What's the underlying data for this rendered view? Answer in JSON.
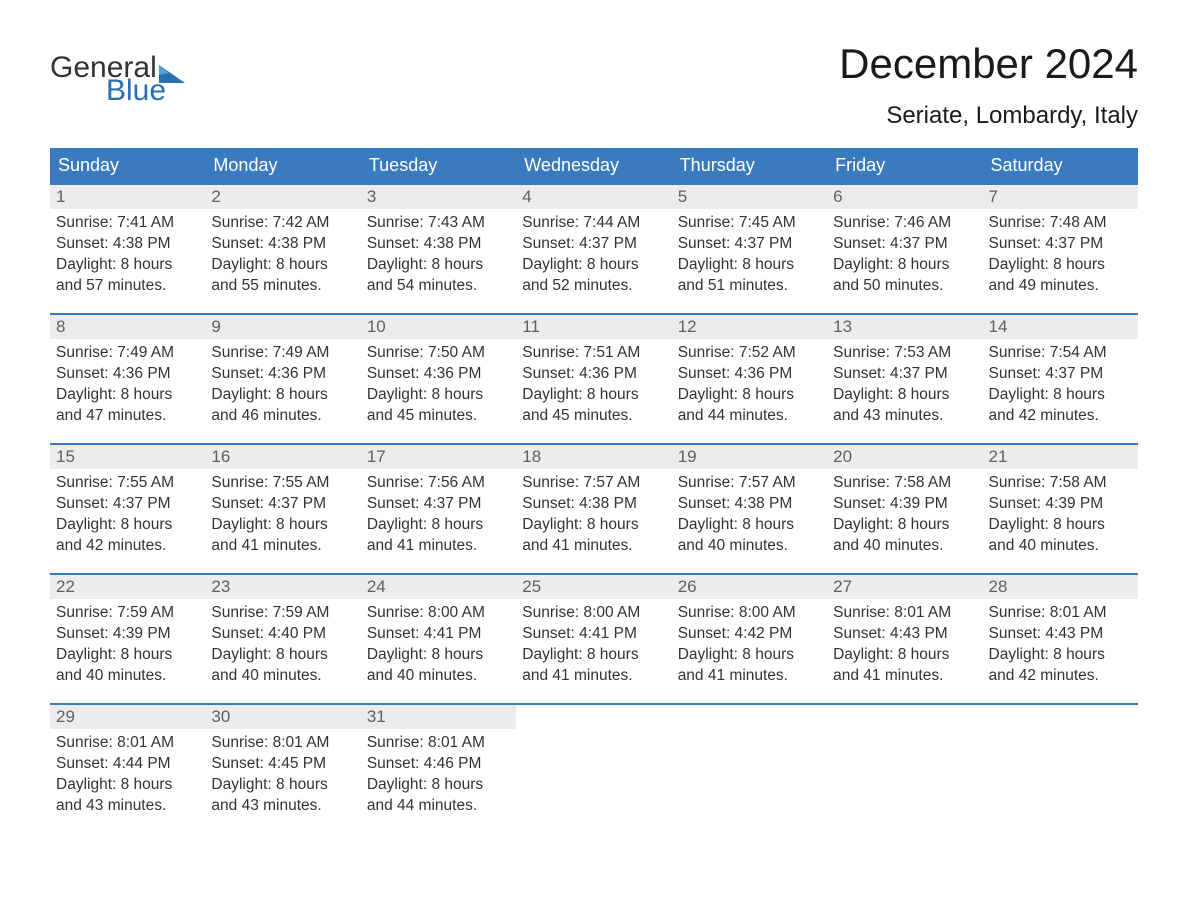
{
  "logo": {
    "word1": "General",
    "word2": "Blue",
    "icon_color": "#2a6fb5",
    "text_color": "#2a6fb5"
  },
  "title": "December 2024",
  "location": "Seriate, Lombardy, Italy",
  "colors": {
    "header_bg": "#3a7bbf",
    "header_text": "#ffffff",
    "week_border": "#3a7bbf",
    "daynum_bg": "#ececec",
    "daynum_text": "#606060",
    "body_text": "#333333",
    "background": "#ffffff"
  },
  "typography": {
    "title_fontsize": 42,
    "location_fontsize": 24,
    "dow_fontsize": 18,
    "daynum_fontsize": 17,
    "body_fontsize": 15.5,
    "font_family": "Arial"
  },
  "days_of_week": [
    "Sunday",
    "Monday",
    "Tuesday",
    "Wednesday",
    "Thursday",
    "Friday",
    "Saturday"
  ],
  "weeks": [
    [
      {
        "num": "1",
        "sunrise": "Sunrise: 7:41 AM",
        "sunset": "Sunset: 4:38 PM",
        "daylight1": "Daylight: 8 hours",
        "daylight2": "and 57 minutes."
      },
      {
        "num": "2",
        "sunrise": "Sunrise: 7:42 AM",
        "sunset": "Sunset: 4:38 PM",
        "daylight1": "Daylight: 8 hours",
        "daylight2": "and 55 minutes."
      },
      {
        "num": "3",
        "sunrise": "Sunrise: 7:43 AM",
        "sunset": "Sunset: 4:38 PM",
        "daylight1": "Daylight: 8 hours",
        "daylight2": "and 54 minutes."
      },
      {
        "num": "4",
        "sunrise": "Sunrise: 7:44 AM",
        "sunset": "Sunset: 4:37 PM",
        "daylight1": "Daylight: 8 hours",
        "daylight2": "and 52 minutes."
      },
      {
        "num": "5",
        "sunrise": "Sunrise: 7:45 AM",
        "sunset": "Sunset: 4:37 PM",
        "daylight1": "Daylight: 8 hours",
        "daylight2": "and 51 minutes."
      },
      {
        "num": "6",
        "sunrise": "Sunrise: 7:46 AM",
        "sunset": "Sunset: 4:37 PM",
        "daylight1": "Daylight: 8 hours",
        "daylight2": "and 50 minutes."
      },
      {
        "num": "7",
        "sunrise": "Sunrise: 7:48 AM",
        "sunset": "Sunset: 4:37 PM",
        "daylight1": "Daylight: 8 hours",
        "daylight2": "and 49 minutes."
      }
    ],
    [
      {
        "num": "8",
        "sunrise": "Sunrise: 7:49 AM",
        "sunset": "Sunset: 4:36 PM",
        "daylight1": "Daylight: 8 hours",
        "daylight2": "and 47 minutes."
      },
      {
        "num": "9",
        "sunrise": "Sunrise: 7:49 AM",
        "sunset": "Sunset: 4:36 PM",
        "daylight1": "Daylight: 8 hours",
        "daylight2": "and 46 minutes."
      },
      {
        "num": "10",
        "sunrise": "Sunrise: 7:50 AM",
        "sunset": "Sunset: 4:36 PM",
        "daylight1": "Daylight: 8 hours",
        "daylight2": "and 45 minutes."
      },
      {
        "num": "11",
        "sunrise": "Sunrise: 7:51 AM",
        "sunset": "Sunset: 4:36 PM",
        "daylight1": "Daylight: 8 hours",
        "daylight2": "and 45 minutes."
      },
      {
        "num": "12",
        "sunrise": "Sunrise: 7:52 AM",
        "sunset": "Sunset: 4:36 PM",
        "daylight1": "Daylight: 8 hours",
        "daylight2": "and 44 minutes."
      },
      {
        "num": "13",
        "sunrise": "Sunrise: 7:53 AM",
        "sunset": "Sunset: 4:37 PM",
        "daylight1": "Daylight: 8 hours",
        "daylight2": "and 43 minutes."
      },
      {
        "num": "14",
        "sunrise": "Sunrise: 7:54 AM",
        "sunset": "Sunset: 4:37 PM",
        "daylight1": "Daylight: 8 hours",
        "daylight2": "and 42 minutes."
      }
    ],
    [
      {
        "num": "15",
        "sunrise": "Sunrise: 7:55 AM",
        "sunset": "Sunset: 4:37 PM",
        "daylight1": "Daylight: 8 hours",
        "daylight2": "and 42 minutes."
      },
      {
        "num": "16",
        "sunrise": "Sunrise: 7:55 AM",
        "sunset": "Sunset: 4:37 PM",
        "daylight1": "Daylight: 8 hours",
        "daylight2": "and 41 minutes."
      },
      {
        "num": "17",
        "sunrise": "Sunrise: 7:56 AM",
        "sunset": "Sunset: 4:37 PM",
        "daylight1": "Daylight: 8 hours",
        "daylight2": "and 41 minutes."
      },
      {
        "num": "18",
        "sunrise": "Sunrise: 7:57 AM",
        "sunset": "Sunset: 4:38 PM",
        "daylight1": "Daylight: 8 hours",
        "daylight2": "and 41 minutes."
      },
      {
        "num": "19",
        "sunrise": "Sunrise: 7:57 AM",
        "sunset": "Sunset: 4:38 PM",
        "daylight1": "Daylight: 8 hours",
        "daylight2": "and 40 minutes."
      },
      {
        "num": "20",
        "sunrise": "Sunrise: 7:58 AM",
        "sunset": "Sunset: 4:39 PM",
        "daylight1": "Daylight: 8 hours",
        "daylight2": "and 40 minutes."
      },
      {
        "num": "21",
        "sunrise": "Sunrise: 7:58 AM",
        "sunset": "Sunset: 4:39 PM",
        "daylight1": "Daylight: 8 hours",
        "daylight2": "and 40 minutes."
      }
    ],
    [
      {
        "num": "22",
        "sunrise": "Sunrise: 7:59 AM",
        "sunset": "Sunset: 4:39 PM",
        "daylight1": "Daylight: 8 hours",
        "daylight2": "and 40 minutes."
      },
      {
        "num": "23",
        "sunrise": "Sunrise: 7:59 AM",
        "sunset": "Sunset: 4:40 PM",
        "daylight1": "Daylight: 8 hours",
        "daylight2": "and 40 minutes."
      },
      {
        "num": "24",
        "sunrise": "Sunrise: 8:00 AM",
        "sunset": "Sunset: 4:41 PM",
        "daylight1": "Daylight: 8 hours",
        "daylight2": "and 40 minutes."
      },
      {
        "num": "25",
        "sunrise": "Sunrise: 8:00 AM",
        "sunset": "Sunset: 4:41 PM",
        "daylight1": "Daylight: 8 hours",
        "daylight2": "and 41 minutes."
      },
      {
        "num": "26",
        "sunrise": "Sunrise: 8:00 AM",
        "sunset": "Sunset: 4:42 PM",
        "daylight1": "Daylight: 8 hours",
        "daylight2": "and 41 minutes."
      },
      {
        "num": "27",
        "sunrise": "Sunrise: 8:01 AM",
        "sunset": "Sunset: 4:43 PM",
        "daylight1": "Daylight: 8 hours",
        "daylight2": "and 41 minutes."
      },
      {
        "num": "28",
        "sunrise": "Sunrise: 8:01 AM",
        "sunset": "Sunset: 4:43 PM",
        "daylight1": "Daylight: 8 hours",
        "daylight2": "and 42 minutes."
      }
    ],
    [
      {
        "num": "29",
        "sunrise": "Sunrise: 8:01 AM",
        "sunset": "Sunset: 4:44 PM",
        "daylight1": "Daylight: 8 hours",
        "daylight2": "and 43 minutes."
      },
      {
        "num": "30",
        "sunrise": "Sunrise: 8:01 AM",
        "sunset": "Sunset: 4:45 PM",
        "daylight1": "Daylight: 8 hours",
        "daylight2": "and 43 minutes."
      },
      {
        "num": "31",
        "sunrise": "Sunrise: 8:01 AM",
        "sunset": "Sunset: 4:46 PM",
        "daylight1": "Daylight: 8 hours",
        "daylight2": "and 44 minutes."
      },
      {
        "empty": true
      },
      {
        "empty": true
      },
      {
        "empty": true
      },
      {
        "empty": true
      }
    ]
  ]
}
